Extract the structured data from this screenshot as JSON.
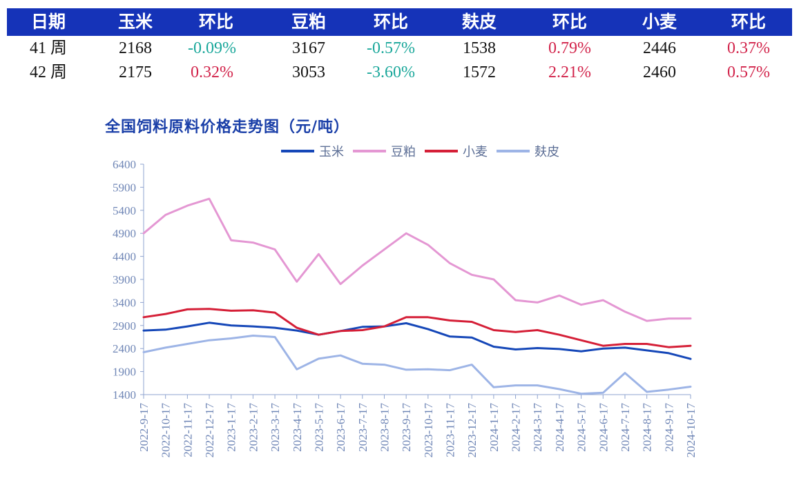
{
  "table": {
    "headers": [
      "日期",
      "玉米",
      "环比",
      "豆粕",
      "环比",
      "麸皮",
      "环比",
      "小麦",
      "环比"
    ],
    "rows": [
      [
        "41 周",
        "2168",
        "-0.09%",
        "3167",
        "-0.57%",
        "1538",
        "0.79%",
        "2446",
        "0.37%"
      ],
      [
        "42 周",
        "2175",
        "0.32%",
        "3053",
        "-3.60%",
        "1572",
        "2.21%",
        "2460",
        "0.57%"
      ]
    ],
    "colors": {
      "header_bg": "#1533b8",
      "positive": "#d2234a",
      "negative": "#19a79a"
    }
  },
  "chart_data": {
    "type": "line",
    "title": "全国饲料原料价格走势图（元/吨）",
    "xlabel": "",
    "ylabel": "",
    "ylim": [
      1400,
      6400
    ],
    "yticks": [
      1400,
      1900,
      2400,
      2900,
      3400,
      3900,
      4400,
      4900,
      5400,
      5900,
      6400
    ],
    "x": [
      "2022-9-17",
      "2022-10-17",
      "2022-11-17",
      "2022-12-17",
      "2023-1-17",
      "2023-2-17",
      "2023-3-17",
      "2023-4-17",
      "2023-5-17",
      "2023-6-17",
      "2023-7-17",
      "2023-8-17",
      "2023-9-17",
      "2023-10-17",
      "2023-11-17",
      "2023-12-17",
      "2024-1-17",
      "2024-2-17",
      "2024-3-17",
      "2024-4-17",
      "2024-5-17",
      "2024-6-17",
      "2024-7-17",
      "2024-8-17",
      "2024-9-17",
      "2024-10-17"
    ],
    "legend_position": "top-center",
    "grid": false,
    "series": [
      {
        "name": "玉米",
        "color": "#1547b8",
        "values": [
          2790,
          2810,
          2880,
          2960,
          2900,
          2880,
          2850,
          2790,
          2700,
          2780,
          2870,
          2880,
          2950,
          2820,
          2660,
          2640,
          2440,
          2380,
          2410,
          2390,
          2340,
          2400,
          2420,
          2360,
          2300,
          2175
        ]
      },
      {
        "name": "豆粕",
        "color": "#e497d3",
        "values": [
          4900,
          5300,
          5500,
          5650,
          4750,
          4700,
          4550,
          3850,
          4450,
          3800,
          4200,
          4550,
          4900,
          4650,
          4250,
          4000,
          3900,
          3450,
          3400,
          3550,
          3350,
          3450,
          3200,
          3000,
          3050,
          3053
        ]
      },
      {
        "name": "小麦",
        "color": "#d51f37",
        "values": [
          3080,
          3150,
          3250,
          3260,
          3220,
          3230,
          3180,
          2850,
          2700,
          2780,
          2800,
          2880,
          3080,
          3080,
          3010,
          2980,
          2800,
          2760,
          2800,
          2700,
          2580,
          2460,
          2500,
          2500,
          2430,
          2460
        ]
      },
      {
        "name": "麸皮",
        "color": "#9db4e6",
        "values": [
          2320,
          2420,
          2500,
          2580,
          2620,
          2680,
          2650,
          1950,
          2180,
          2250,
          2070,
          2050,
          1940,
          1950,
          1930,
          2050,
          1560,
          1600,
          1600,
          1520,
          1420,
          1440,
          1870,
          1460,
          1510,
          1572
        ]
      }
    ]
  }
}
